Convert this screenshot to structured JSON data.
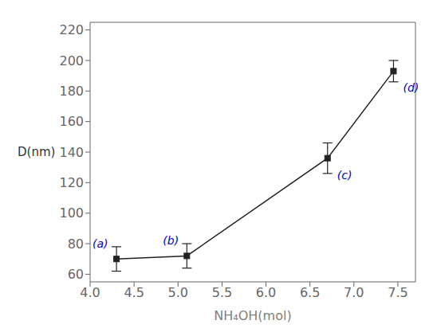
{
  "chart_data": {
    "type": "line",
    "x": [
      4.3,
      5.1,
      6.7,
      7.45
    ],
    "values": [
      70,
      72,
      136,
      193
    ],
    "yerr": [
      8,
      8,
      10,
      7
    ],
    "xlabel": "NH₄OH(mol)",
    "ylabel": "D(nm)",
    "xlim": [
      4.0,
      7.7
    ],
    "ylim": [
      55,
      225
    ],
    "xticks": [
      {
        "value": 4,
        "label": "4.0"
      },
      4.5,
      {
        "value": 5,
        "label": "5.0"
      },
      5.5,
      {
        "value": 6,
        "label": "6.0"
      },
      6.5,
      {
        "value": 7,
        "label": "7.0"
      },
      7.5
    ],
    "yticks": [
      60,
      80,
      100,
      120,
      140,
      160,
      180,
      200,
      220
    ],
    "color": "#222222",
    "marker": "square",
    "grid": false,
    "annotations": [
      {
        "text": "(a)",
        "x": 4.3,
        "color": "#0000CC"
      },
      {
        "text": "(b)",
        "x": 5.1,
        "color": "#0000CC"
      },
      {
        "text": "(c)",
        "x": 6.7,
        "color": "#0000CC"
      },
      {
        "text": "(d)",
        "x": 7.45,
        "color": "#0000CC"
      }
    ]
  }
}
